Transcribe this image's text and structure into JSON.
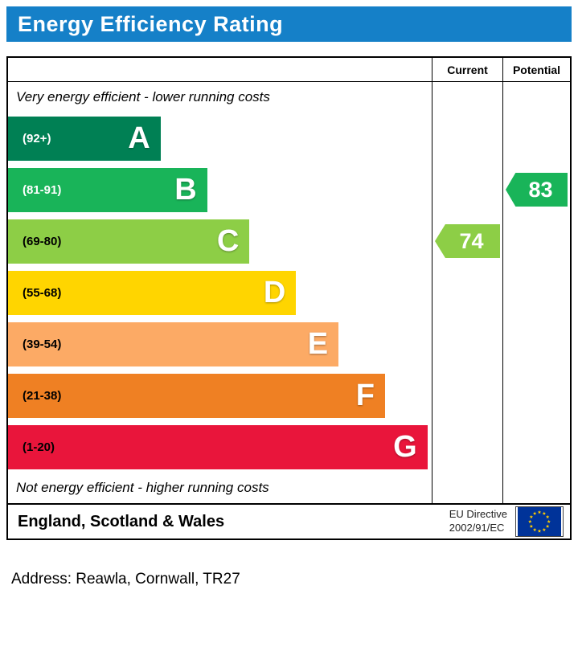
{
  "title": "Energy Efficiency Rating",
  "colors": {
    "header_bar": "#1580c8",
    "border": "#000000"
  },
  "columns": {
    "current": "Current",
    "potential": "Potential"
  },
  "chart_data": {
    "type": "bar",
    "variant": "epc-energy-efficiency-rating",
    "title": "Energy Efficiency Rating",
    "top_label": "Very energy efficient - lower running costs",
    "bottom_label": "Not energy efficient - higher running costs",
    "bands": [
      {
        "letter": "A",
        "range": "(92+)",
        "color": "#008054",
        "range_text_color": "#ffffff",
        "width_pct": 36
      },
      {
        "letter": "B",
        "range": "(81-91)",
        "color": "#19b459",
        "range_text_color": "#ffffff",
        "width_pct": 47
      },
      {
        "letter": "C",
        "range": "(69-80)",
        "color": "#8dce46",
        "range_text_color": "#000000",
        "width_pct": 57
      },
      {
        "letter": "D",
        "range": "(55-68)",
        "color": "#ffd500",
        "range_text_color": "#000000",
        "width_pct": 68
      },
      {
        "letter": "E",
        "range": "(39-54)",
        "color": "#fcaa65",
        "range_text_color": "#000000",
        "width_pct": 78
      },
      {
        "letter": "F",
        "range": "(21-38)",
        "color": "#ef8023",
        "range_text_color": "#000000",
        "width_pct": 89
      },
      {
        "letter": "G",
        "range": "(1-20)",
        "color": "#e9153b",
        "range_text_color": "#000000",
        "width_pct": 99
      }
    ],
    "current": {
      "value": 74,
      "band": "C",
      "color": "#8dce46"
    },
    "potential": {
      "value": 83,
      "band": "B",
      "color": "#19b459"
    }
  },
  "footer": {
    "region": "England, Scotland & Wales",
    "directive_line1": "EU Directive",
    "directive_line2": "2002/91/EC"
  },
  "address": "Address: Reawla, Cornwall, TR27"
}
